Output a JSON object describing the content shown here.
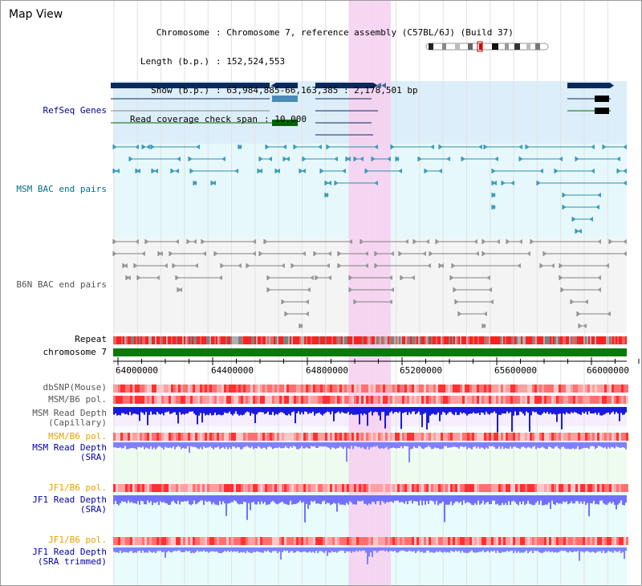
{
  "map_title": "Map View",
  "header": {
    "chromosome_label": "Chromosome",
    "chromosome_value": ": Chromosome 7, reference assembly (C57BL/6J) (Build 37)",
    "length_label": "Length (b.p.)",
    "length_value": ": 152,524,553",
    "show_label": "Show (b.p.)",
    "show_value": ": 63,984,885-66,163,385 : 2,178,501 bp",
    "coverage_label": "Read coverage check span",
    "coverage_value": ": 10,000"
  },
  "tracks": {
    "refseq": "RefSeq Genes",
    "msm_bac": "MSM BAC end pairs",
    "b6n_bac": "B6N BAC end pairs",
    "repeat": "Repeat",
    "chromosome": "chromosome 7",
    "dbsnp": "dbSNP(Mouse)",
    "msm_b6_pol": "MSM/B6 pol.",
    "msm_depth_cap_1": "MSM Read Depth",
    "msm_depth_cap_2": "(Capillary)",
    "msm_b6_pol_2": "MSM/B6 pol.",
    "msm_depth_sra_1": "MSM Read Depth",
    "msm_depth_sra_2": "(SRA)",
    "jf1_b6_pol": "JF1/B6 pol.",
    "jf1_depth_sra_1": "JF1 Read Depth",
    "jf1_depth_sra_2": "(SRA)",
    "jf1_b6_pol_2": "JF1/B6 pol.",
    "jf1_depth_trim_1": "JF1 Read Depth",
    "jf1_depth_trim_2": "(SRA trimmed)"
  },
  "axis": {
    "ticks": [
      "64000000",
      "64400000",
      "64800000",
      "65200000",
      "65600000",
      "66000000"
    ]
  },
  "colors": {
    "refseq_bg": "#d9eefa",
    "highlight": "#f6d2f2",
    "gene_navy": "#0a2a5e",
    "gene_green": "#006400",
    "bac_teal": "#2e8fa8",
    "bac_gray": "#808080",
    "repeat_red": "#ff2020",
    "chromosome_green": "#0a7a0a",
    "depth_blue": "#1a1adf",
    "depth_light": "#8080ff"
  }
}
